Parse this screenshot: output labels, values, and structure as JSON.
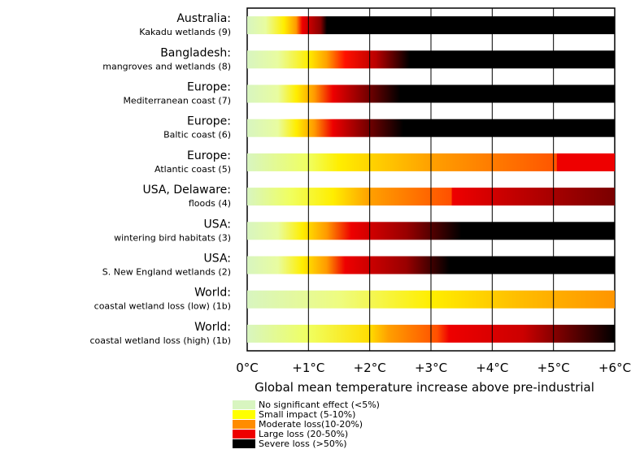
{
  "chart_data": {
    "type": "bar",
    "subtype": "horizontal-gradient-impact",
    "xlabel": "Global mean temperature increase above pre-industrial",
    "xlim": [
      0,
      6
    ],
    "ticks": [
      "0°C",
      "+1°C",
      "+2°C",
      "+3°C",
      "+4°C",
      "+5°C",
      "+6°C"
    ],
    "grid": true,
    "legend_position": "bottom-left",
    "legend": [
      {
        "key": "none",
        "label": "No significant effect (<5%)",
        "color": "#d8f5c0"
      },
      {
        "key": "small",
        "label": "Small impact (5-10%)",
        "color": "#ffff00"
      },
      {
        "key": "moderate",
        "label": "Moderate loss(10-20%)",
        "color": "#ff8c00"
      },
      {
        "key": "large",
        "label": "Large loss (20-50%)",
        "color": "#ee0000"
      },
      {
        "key": "severe",
        "label": "Severe loss (>50%)",
        "color": "#000000"
      }
    ],
    "rows": [
      {
        "region": "Australia:",
        "detail": "Kakadu wetlands (9)",
        "stops": [
          [
            0,
            "#d8f5c0"
          ],
          [
            0.3,
            "#e8fca0"
          ],
          [
            0.6,
            "#ffee00"
          ],
          [
            0.8,
            "#ff9900"
          ],
          [
            0.9,
            "#ee0000"
          ],
          [
            1.2,
            "#880000"
          ],
          [
            1.3,
            "#000000"
          ]
        ]
      },
      {
        "region": "Bangladesh:",
        "detail": "mangroves and wetlands (8)",
        "stops": [
          [
            0,
            "#d8f5c0"
          ],
          [
            0.5,
            "#e8fca0"
          ],
          [
            1.0,
            "#ffee00"
          ],
          [
            1.3,
            "#ffa000"
          ],
          [
            1.6,
            "#ff1000"
          ],
          [
            2.1,
            "#bb0000"
          ],
          [
            2.65,
            "#000000"
          ]
        ]
      },
      {
        "region": "Europe:",
        "detail": "Mediterranean coast (7)",
        "stops": [
          [
            0,
            "#d8f5c0"
          ],
          [
            0.5,
            "#e8fca0"
          ],
          [
            0.8,
            "#ffee00"
          ],
          [
            1.1,
            "#ff9900"
          ],
          [
            1.4,
            "#ee0000"
          ],
          [
            2.0,
            "#700000"
          ],
          [
            2.5,
            "#000000"
          ]
        ]
      },
      {
        "region": "Europe:",
        "detail": "Baltic coast (6)",
        "stops": [
          [
            0,
            "#d8f5c0"
          ],
          [
            0.5,
            "#e8fca0"
          ],
          [
            0.8,
            "#ffee00"
          ],
          [
            1.1,
            "#ff9900"
          ],
          [
            1.4,
            "#ee0000"
          ],
          [
            2.0,
            "#700000"
          ],
          [
            2.55,
            "#000000"
          ]
        ]
      },
      {
        "region": "Europe:",
        "detail": "Atlantic coast (5)",
        "stops": [
          [
            0,
            "#d8f5c0"
          ],
          [
            1.0,
            "#f0ff60"
          ],
          [
            1.5,
            "#ffee00"
          ],
          [
            3.0,
            "#ffa000"
          ],
          [
            5.05,
            "#ff5500"
          ],
          [
            5.06,
            "#ee0000"
          ],
          [
            6.0,
            "#ee0000"
          ]
        ]
      },
      {
        "region": "USA, Delaware:",
        "detail": "floods (4)",
        "stops": [
          [
            0,
            "#d8f5c0"
          ],
          [
            0.7,
            "#f0ff60"
          ],
          [
            1.4,
            "#ffee00"
          ],
          [
            2.0,
            "#ffa000"
          ],
          [
            3.33,
            "#ff5000"
          ],
          [
            3.35,
            "#ee0000"
          ],
          [
            6.0,
            "#7a0000"
          ]
        ]
      },
      {
        "region": "USA:",
        "detail": "wintering bird habitats (3)",
        "stops": [
          [
            0,
            "#d8f5c0"
          ],
          [
            0.5,
            "#e8fca0"
          ],
          [
            0.9,
            "#ffee00"
          ],
          [
            1.3,
            "#ff9900"
          ],
          [
            1.7,
            "#ee0000"
          ],
          [
            2.6,
            "#990000"
          ],
          [
            3.5,
            "#000000"
          ]
        ]
      },
      {
        "region": "USA:",
        "detail": "S. New England wetlands (2)",
        "stops": [
          [
            0,
            "#d8f5c0"
          ],
          [
            0.5,
            "#e8fca0"
          ],
          [
            0.9,
            "#ffee00"
          ],
          [
            1.3,
            "#ff9900"
          ],
          [
            1.6,
            "#ee0000"
          ],
          [
            2.6,
            "#990000"
          ],
          [
            3.3,
            "#000000"
          ]
        ]
      },
      {
        "region": "World:",
        "detail": "coastal wetland loss (low) (1b)",
        "stops": [
          [
            0,
            "#d8f5c0"
          ],
          [
            1.5,
            "#eefc80"
          ],
          [
            3.0,
            "#ffee00"
          ],
          [
            4.5,
            "#ffbb00"
          ],
          [
            6.0,
            "#ff9500"
          ]
        ]
      },
      {
        "region": "World:",
        "detail": "coastal wetland loss (high) (1b)",
        "stops": [
          [
            0,
            "#d8f5c0"
          ],
          [
            1.0,
            "#f0ff60"
          ],
          [
            2.0,
            "#ffdd00"
          ],
          [
            2.3,
            "#ffa000"
          ],
          [
            3.1,
            "#ff5000"
          ],
          [
            3.3,
            "#ee0000"
          ],
          [
            4.5,
            "#cc0000"
          ],
          [
            6.0,
            "#000000"
          ]
        ]
      }
    ]
  }
}
